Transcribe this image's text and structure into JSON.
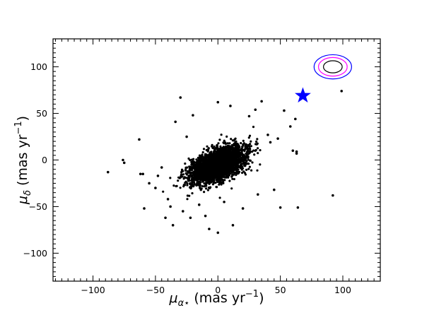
{
  "chart_data": {
    "type": "scatter",
    "title": "",
    "xlabel_main": "μ",
    "xlabel_sub": "α⋆",
    "xlabel_unit": "(mas yr",
    "xlabel_exp": "−1",
    "xlabel_close": ")",
    "ylabel_main": "μ",
    "ylabel_sub": "δ",
    "ylabel_unit": "(mas yr",
    "ylabel_exp": "−1",
    "ylabel_close": ")",
    "xlim": [
      -132,
      130
    ],
    "ylim": [
      -130,
      130
    ],
    "xticks": [
      -100,
      -50,
      0,
      50,
      100
    ],
    "xtick_labels": [
      "−100",
      "−50",
      "0",
      "50",
      "100"
    ],
    "yticks": [
      -100,
      -50,
      0,
      50,
      100
    ],
    "ytick_labels": [
      "−100",
      "−50",
      "0",
      "50",
      "100"
    ],
    "grid": false,
    "cluster": {
      "description_points": "dense elliptical cloud of ~3000 stars",
      "center": [
        0,
        -5
      ],
      "count": 3000,
      "sigma_major": 13,
      "sigma_minor": 7,
      "angle_deg": 37,
      "color": "#000000"
    },
    "outliers": [
      [
        -88,
        -13
      ],
      [
        -76,
        0
      ],
      [
        -75,
        -3
      ],
      [
        -63,
        22
      ],
      [
        -62,
        -15
      ],
      [
        -60,
        -15
      ],
      [
        -59,
        -52
      ],
      [
        -55,
        -25
      ],
      [
        -50,
        -30
      ],
      [
        -48,
        -17
      ],
      [
        -45,
        -8
      ],
      [
        -42,
        -62
      ],
      [
        -40,
        -42
      ],
      [
        -38,
        -50
      ],
      [
        -36,
        -70
      ],
      [
        -34,
        41
      ],
      [
        -30,
        67
      ],
      [
        -28,
        -55
      ],
      [
        -25,
        25
      ],
      [
        -22,
        -62
      ],
      [
        -20,
        48
      ],
      [
        -15,
        -48
      ],
      [
        -10,
        -60
      ],
      [
        -7,
        -74
      ],
      [
        0,
        62
      ],
      [
        0,
        -78
      ],
      [
        5,
        -45
      ],
      [
        10,
        58
      ],
      [
        12,
        -70
      ],
      [
        20,
        -52
      ],
      [
        25,
        47
      ],
      [
        30,
        54
      ],
      [
        32,
        -37
      ],
      [
        35,
        63
      ],
      [
        40,
        27
      ],
      [
        42,
        19
      ],
      [
        45,
        -32
      ],
      [
        48,
        23
      ],
      [
        50,
        -51
      ],
      [
        53,
        53
      ],
      [
        58,
        36
      ],
      [
        60,
        10
      ],
      [
        62,
        44
      ],
      [
        63,
        9
      ],
      [
        63,
        7
      ],
      [
        64,
        -51
      ],
      [
        92,
        -38
      ],
      [
        99,
        74
      ]
    ],
    "star_marker": {
      "x": 68,
      "y": 69,
      "color": "#0000ff"
    },
    "error_ellipses": {
      "center": [
        92,
        100
      ],
      "colors": [
        "#000000",
        "#ff00ff",
        "#0000ff"
      ],
      "semi_axes_x": [
        7.5,
        11.5,
        15
      ],
      "semi_axes_y": [
        6.5,
        10,
        13
      ]
    }
  }
}
